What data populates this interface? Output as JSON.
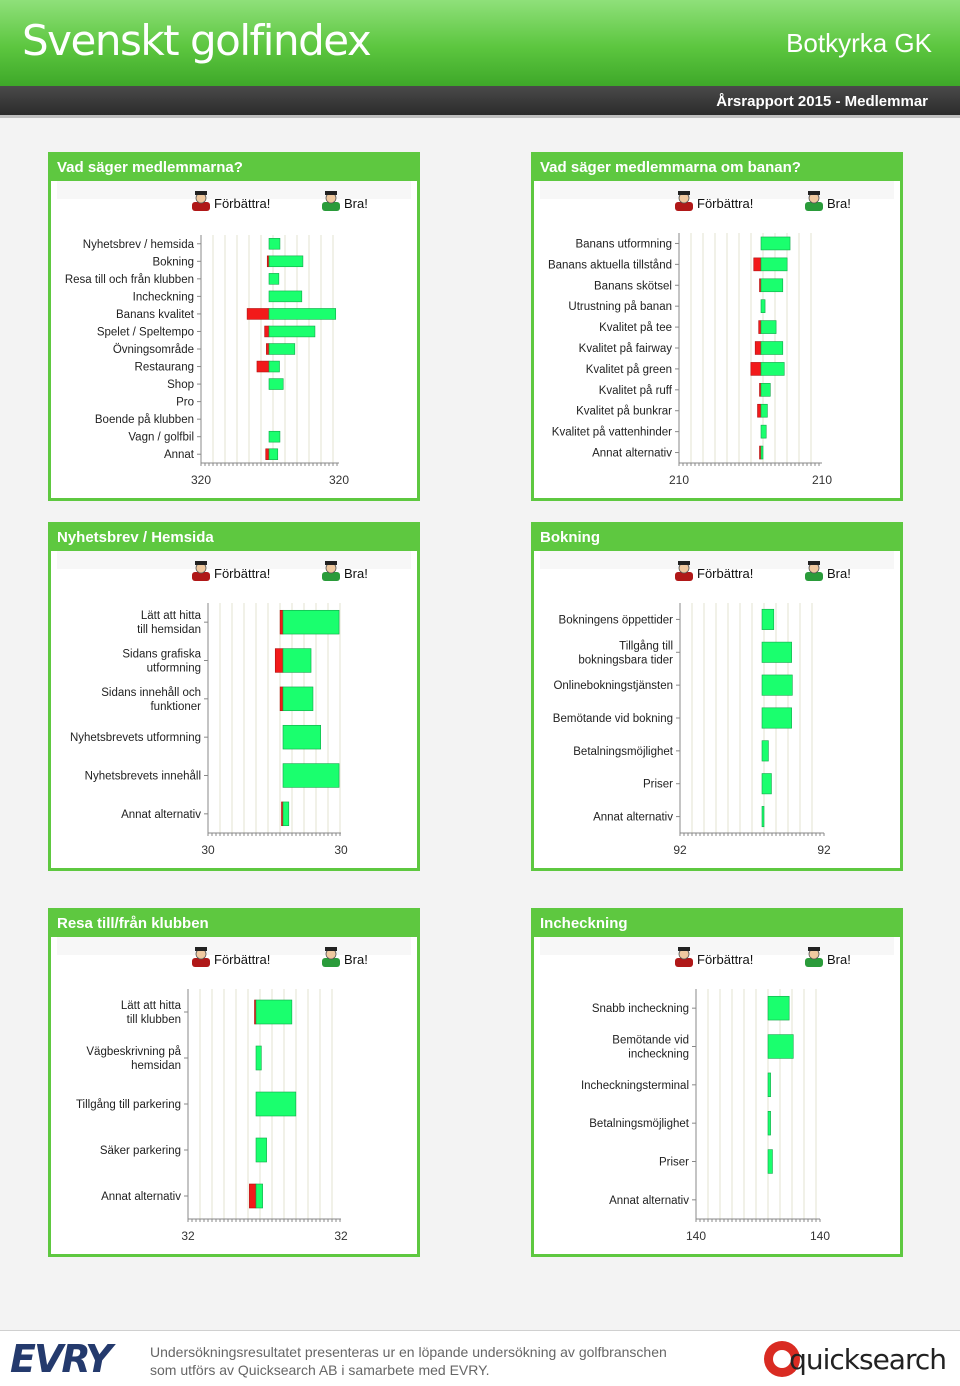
{
  "header": {
    "brand": "Svenskt golfindex",
    "club": "Botkyrka GK",
    "report": "Årsrapport 2015 - Medlemmar"
  },
  "legend": {
    "negative": "Förbättra!",
    "positive": "Bra!"
  },
  "colors": {
    "negative": "#f21a1a",
    "positive": "#1aff6e",
    "accent": "#5ec840"
  },
  "footer": {
    "line1": "Undersökningsresultatet presenteras ur en löpande undersökning av golfbranschen",
    "line2": "som utförs av Quicksearch AB i samarbete med EVRY.",
    "evry": "EVRY",
    "quicksearch": "quicksearch"
  },
  "chart_data": [
    {
      "title": "Vad säger medlemmarna?",
      "type": "bar",
      "orientation": "diverging-horizontal",
      "xlim_labels": [
        "320",
        "320"
      ],
      "xlim": [
        -320,
        320
      ],
      "categories": [
        "Nyhetsbrev / hemsida",
        "Bokning",
        "Resa till och från klubben",
        "Incheckning",
        "Banans kvalitet",
        "Spelet / Speltempo",
        "Övningsområde",
        "Restaurang",
        "Shop",
        "Pro",
        "Boende på klubben",
        "Vagn / golfbil",
        "Annat"
      ],
      "negative": [
        0,
        8,
        0,
        0,
        100,
        20,
        12,
        55,
        0,
        0,
        0,
        0,
        15
      ],
      "positive": [
        50,
        155,
        45,
        150,
        305,
        210,
        118,
        48,
        65,
        0,
        0,
        50,
        40
      ]
    },
    {
      "title": "Vad säger medlemmarna om banan?",
      "type": "bar",
      "orientation": "diverging-horizontal",
      "xlim_labels": [
        "210",
        "210"
      ],
      "xlim": [
        -210,
        210
      ],
      "categories": [
        "Banans utformning",
        "Banans aktuella tillstånd",
        "Banans skötsel",
        "Utrustning på banan",
        "Kvalitet på tee",
        "Kvalitet på fairway",
        "Kvalitet på green",
        "Kvalitet på ruff",
        "Kvalitet på bunkrar",
        "Kvalitet på vattenhinder",
        "Annat alternativ"
      ],
      "negative": [
        0,
        25,
        4,
        0,
        8,
        20,
        35,
        2,
        12,
        0,
        2
      ],
      "positive": [
        100,
        90,
        75,
        14,
        52,
        75,
        80,
        32,
        22,
        18,
        2
      ]
    },
    {
      "title": "Nyhetsbrev / Hemsida",
      "type": "bar",
      "orientation": "diverging-horizontal",
      "xlim_labels": [
        "30",
        "30"
      ],
      "xlim": [
        -30,
        30
      ],
      "categories": [
        "Lätt att hitta till hemsidan",
        "Sidans grafiska utformning",
        "Sidans innehåll och funktioner",
        "Nyhetsbrevets utformning",
        "Nyhetsbrevets innehåll",
        "Annat alternativ"
      ],
      "negative": [
        1.5,
        4,
        1.5,
        0,
        0,
        0.5
      ],
      "positive": [
        29,
        14.5,
        15.5,
        19.5,
        29,
        3
      ]
    },
    {
      "title": "Bokning",
      "type": "bar",
      "orientation": "diverging-horizontal",
      "xlim_labels": [
        "92",
        "92"
      ],
      "xlim": [
        -92,
        92
      ],
      "categories": [
        "Bokningens öppettider",
        "Tillgång till bokningsbara tider",
        "Onlinebokningstjänsten",
        "Bemötande vid bokning",
        "Betalningsmöjlighet",
        "Priser",
        "Annat alternativ"
      ],
      "negative": [
        0,
        0,
        0,
        0,
        0,
        0,
        0
      ],
      "positive": [
        17.5,
        44,
        45,
        44,
        9.5,
        14,
        2.5
      ]
    },
    {
      "title": "Resa till/från klubben",
      "type": "bar",
      "orientation": "diverging-horizontal",
      "xlim_labels": [
        "32",
        "32"
      ],
      "xlim": [
        -32,
        32
      ],
      "categories": [
        "Lätt att hitta till klubben",
        "Vägbeskrivning på hemsidan",
        "Tillgång till parkering",
        "Säker parkering",
        "Annat alternativ"
      ],
      "negative": [
        0.5,
        0,
        0,
        0,
        2.5
      ],
      "positive": [
        13.5,
        2,
        15,
        4,
        2.5
      ]
    },
    {
      "title": "Incheckning",
      "type": "bar",
      "orientation": "diverging-horizontal",
      "xlim_labels": [
        "140",
        "140"
      ],
      "xlim": [
        -140,
        140
      ],
      "categories": [
        "Snabb incheckning",
        "Bemötande vid incheckning",
        "Incheckningsterminal",
        "Betalningsmöjlighet",
        "Priser",
        "Annat alternativ"
      ],
      "negative": [
        0,
        0,
        0,
        0,
        0,
        0
      ],
      "positive": [
        57,
        68,
        7,
        7,
        12,
        0
      ]
    }
  ]
}
